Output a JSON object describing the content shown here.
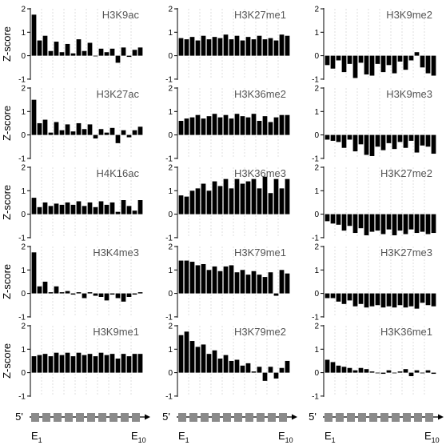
{
  "figure": {
    "y_axis_label": "Z-score",
    "prime_label": "5'",
    "exon_first": {
      "base": "E",
      "sub": "1"
    },
    "exon_last": {
      "base": "E",
      "sub": "10"
    },
    "exon_count": 10
  },
  "chart_data": [
    {
      "type": "bar",
      "title": "H3K9ac",
      "ylabel": "Z-score",
      "ylim": [
        -1,
        2
      ],
      "yticks": [
        -1,
        0,
        1,
        2
      ],
      "grid": false,
      "x": [
        1,
        2,
        3,
        4,
        5,
        6,
        7,
        8,
        9,
        10,
        11,
        12,
        13,
        14,
        15,
        16,
        17,
        18,
        19,
        20
      ],
      "values": [
        1.75,
        0.65,
        0.85,
        0.2,
        0.6,
        0.15,
        0.5,
        0.1,
        0.7,
        0.2,
        0.55,
        0.0,
        0.3,
        0.15,
        0.3,
        -0.3,
        0.35,
        -0.05,
        0.25,
        0.35
      ]
    },
    {
      "type": "bar",
      "title": "H3K27me1",
      "ylabel": "Z-score",
      "ylim": [
        -1,
        2
      ],
      "yticks": [
        -1,
        0,
        1,
        2
      ],
      "grid": false,
      "x": [
        1,
        2,
        3,
        4,
        5,
        6,
        7,
        8,
        9,
        10,
        11,
        12,
        13,
        14,
        15,
        16,
        17,
        18,
        19,
        20
      ],
      "values": [
        0.75,
        0.7,
        0.8,
        0.65,
        0.85,
        0.7,
        0.8,
        0.75,
        0.9,
        0.7,
        0.85,
        0.65,
        0.8,
        0.7,
        0.85,
        0.7,
        0.75,
        0.65,
        0.9,
        0.85
      ]
    },
    {
      "type": "bar",
      "title": "H3K9me2",
      "ylabel": "Z-score",
      "ylim": [
        -1,
        2
      ],
      "yticks": [
        -1,
        0,
        1,
        2
      ],
      "grid": false,
      "x": [
        1,
        2,
        3,
        4,
        5,
        6,
        7,
        8,
        9,
        10,
        11,
        12,
        13,
        14,
        15,
        16,
        17,
        18,
        19,
        20
      ],
      "values": [
        -0.4,
        -0.55,
        -0.2,
        -0.7,
        -0.35,
        -0.95,
        -0.3,
        -0.8,
        -0.85,
        -0.35,
        -0.7,
        -0.4,
        -0.75,
        -0.25,
        -0.6,
        -0.2,
        0.15,
        -0.5,
        -0.75,
        -0.85
      ]
    },
    {
      "type": "bar",
      "title": "H3K27ac",
      "ylabel": "Z-score",
      "ylim": [
        -1,
        2
      ],
      "yticks": [
        -1,
        0,
        1,
        2
      ],
      "grid": false,
      "x": [
        1,
        2,
        3,
        4,
        5,
        6,
        7,
        8,
        9,
        10,
        11,
        12,
        13,
        14,
        15,
        16,
        17,
        18,
        19,
        20
      ],
      "values": [
        1.5,
        0.5,
        0.65,
        0.1,
        0.55,
        0.2,
        0.45,
        0.15,
        0.5,
        0.25,
        0.45,
        -0.15,
        0.25,
        0.1,
        0.3,
        -0.35,
        0.2,
        -0.1,
        0.2,
        0.35
      ]
    },
    {
      "type": "bar",
      "title": "H3K36me2",
      "ylabel": "Z-score",
      "ylim": [
        -1,
        2
      ],
      "yticks": [
        -1,
        0,
        1,
        2
      ],
      "grid": false,
      "x": [
        1,
        2,
        3,
        4,
        5,
        6,
        7,
        8,
        9,
        10,
        11,
        12,
        13,
        14,
        15,
        16,
        17,
        18,
        19,
        20
      ],
      "values": [
        0.6,
        0.7,
        0.75,
        0.85,
        0.7,
        0.8,
        0.9,
        0.75,
        0.85,
        0.7,
        0.9,
        0.8,
        0.75,
        0.9,
        0.6,
        0.8,
        0.55,
        0.75,
        0.85,
        0.85
      ]
    },
    {
      "type": "bar",
      "title": "H3K9me3",
      "ylabel": "Z-score",
      "ylim": [
        -1,
        2
      ],
      "yticks": [
        -1,
        0,
        1,
        2
      ],
      "grid": false,
      "x": [
        1,
        2,
        3,
        4,
        5,
        6,
        7,
        8,
        9,
        10,
        11,
        12,
        13,
        14,
        15,
        16,
        17,
        18,
        19,
        20
      ],
      "values": [
        -0.2,
        -0.25,
        -0.3,
        -0.55,
        -0.2,
        -0.7,
        -0.4,
        -0.85,
        -0.9,
        -0.5,
        -0.65,
        -0.35,
        -0.6,
        -0.3,
        -0.55,
        -0.25,
        -0.75,
        -0.45,
        -0.5,
        -0.8
      ]
    },
    {
      "type": "bar",
      "title": "H4K16ac",
      "ylabel": "Z-score",
      "ylim": [
        -1,
        2
      ],
      "yticks": [
        -1,
        0,
        1,
        2
      ],
      "grid": false,
      "x": [
        1,
        2,
        3,
        4,
        5,
        6,
        7,
        8,
        9,
        10,
        11,
        12,
        13,
        14,
        15,
        16,
        17,
        18,
        19,
        20
      ],
      "values": [
        0.7,
        0.3,
        0.5,
        0.35,
        0.45,
        0.4,
        0.5,
        0.4,
        0.55,
        0.35,
        0.5,
        0.3,
        0.55,
        0.4,
        0.5,
        0.1,
        0.6,
        0.35,
        0.15,
        0.6
      ]
    },
    {
      "type": "bar",
      "title": "H3K36me3",
      "ylabel": "Z-score",
      "ylim": [
        -1,
        2
      ],
      "yticks": [
        -1,
        0,
        1,
        2
      ],
      "grid": false,
      "x": [
        1,
        2,
        3,
        4,
        5,
        6,
        7,
        8,
        9,
        10,
        11,
        12,
        13,
        14,
        15,
        16,
        17,
        18,
        19,
        20
      ],
      "values": [
        0.8,
        0.75,
        1.0,
        1.1,
        1.3,
        1.0,
        1.4,
        1.2,
        1.5,
        1.1,
        1.5,
        1.3,
        1.4,
        1.5,
        1.1,
        1.6,
        0.9,
        1.5,
        1.1,
        1.5
      ]
    },
    {
      "type": "bar",
      "title": "H3K27me2",
      "ylabel": "Z-score",
      "ylim": [
        -1,
        2
      ],
      "yticks": [
        -1,
        0,
        1,
        2
      ],
      "grid": false,
      "x": [
        1,
        2,
        3,
        4,
        5,
        6,
        7,
        8,
        9,
        10,
        11,
        12,
        13,
        14,
        15,
        16,
        17,
        18,
        19,
        20
      ],
      "values": [
        -0.3,
        -0.4,
        -0.45,
        -0.7,
        -0.5,
        -0.8,
        -0.6,
        -0.9,
        -0.75,
        -0.7,
        -0.85,
        -0.65,
        -0.9,
        -0.7,
        -0.85,
        -0.65,
        -0.8,
        -0.75,
        -0.85,
        -0.8
      ]
    },
    {
      "type": "bar",
      "title": "H3K4me3",
      "ylabel": "Z-score",
      "ylim": [
        -1,
        2
      ],
      "yticks": [
        -1,
        0,
        1,
        2
      ],
      "grid": false,
      "x": [
        1,
        2,
        3,
        4,
        5,
        6,
        7,
        8,
        9,
        10,
        11,
        12,
        13,
        14,
        15,
        16,
        17,
        18,
        19,
        20
      ],
      "values": [
        1.75,
        0.3,
        0.5,
        0.05,
        0.3,
        0.05,
        0.1,
        -0.05,
        0.05,
        -0.2,
        0.05,
        -0.1,
        -0.15,
        -0.3,
        -0.05,
        -0.2,
        -0.35,
        -0.15,
        -0.05,
        0.05
      ]
    },
    {
      "type": "bar",
      "title": "H3K79me1",
      "ylabel": "Z-score",
      "ylim": [
        -1,
        2
      ],
      "yticks": [
        -1,
        0,
        1,
        2
      ],
      "grid": false,
      "x": [
        1,
        2,
        3,
        4,
        5,
        6,
        7,
        8,
        9,
        10,
        11,
        12,
        13,
        14,
        15,
        16,
        17,
        18,
        19,
        20
      ],
      "values": [
        1.4,
        1.4,
        1.35,
        1.2,
        1.25,
        1.0,
        1.15,
        0.95,
        1.15,
        1.2,
        0.9,
        1.0,
        0.8,
        0.95,
        0.8,
        0.7,
        0.9,
        -0.1,
        1.0,
        0.85
      ]
    },
    {
      "type": "bar",
      "title": "H3K27me3",
      "ylabel": "Z-score",
      "ylim": [
        -1,
        2
      ],
      "yticks": [
        -1,
        0,
        1,
        2
      ],
      "grid": false,
      "x": [
        1,
        2,
        3,
        4,
        5,
        6,
        7,
        8,
        9,
        10,
        11,
        12,
        13,
        14,
        15,
        16,
        17,
        18,
        19,
        20
      ],
      "values": [
        -0.2,
        -0.2,
        -0.35,
        -0.45,
        -0.3,
        -0.55,
        -0.45,
        -0.6,
        -0.55,
        -0.5,
        -0.6,
        -0.55,
        -0.6,
        -0.5,
        -0.6,
        -0.55,
        -0.65,
        -0.4,
        -0.5,
        -0.55
      ]
    },
    {
      "type": "bar",
      "title": "H3K9me1",
      "ylabel": "Z-score",
      "ylim": [
        -1,
        2
      ],
      "yticks": [
        -1,
        0,
        1,
        2
      ],
      "grid": false,
      "x": [
        1,
        2,
        3,
        4,
        5,
        6,
        7,
        8,
        9,
        10,
        11,
        12,
        13,
        14,
        15,
        16,
        17,
        18,
        19,
        20
      ],
      "values": [
        0.7,
        0.75,
        0.8,
        0.7,
        0.85,
        0.75,
        0.85,
        0.7,
        0.85,
        0.75,
        0.8,
        0.7,
        0.85,
        0.75,
        0.8,
        0.6,
        0.8,
        0.7,
        0.8,
        0.8
      ]
    },
    {
      "type": "bar",
      "title": "H3K79me2",
      "ylabel": "Z-score",
      "ylim": [
        -1,
        2
      ],
      "yticks": [
        -1,
        0,
        1,
        2
      ],
      "grid": false,
      "x": [
        1,
        2,
        3,
        4,
        5,
        6,
        7,
        8,
        9,
        10,
        11,
        12,
        13,
        14,
        15,
        16,
        17,
        18,
        19,
        20
      ],
      "values": [
        1.6,
        1.75,
        1.35,
        1.1,
        1.2,
        0.8,
        0.95,
        0.6,
        0.75,
        0.5,
        0.55,
        0.3,
        0.4,
        0.05,
        0.25,
        -0.35,
        0.25,
        -0.25,
        0.2,
        0.5
      ]
    },
    {
      "type": "bar",
      "title": "H3K36me1",
      "ylabel": "Z-score",
      "ylim": [
        -1,
        2
      ],
      "yticks": [
        -1,
        0,
        1,
        2
      ],
      "grid": false,
      "x": [
        1,
        2,
        3,
        4,
        5,
        6,
        7,
        8,
        9,
        10,
        11,
        12,
        13,
        14,
        15,
        16,
        17,
        18,
        19,
        20
      ],
      "values": [
        0.55,
        0.45,
        0.3,
        0.25,
        0.2,
        0.1,
        0.2,
        0.15,
        0.05,
        0.0,
        -0.05,
        0.1,
        0.0,
        0.05,
        0.15,
        -0.15,
        0.1,
        0.0,
        0.1,
        -0.05
      ]
    }
  ]
}
